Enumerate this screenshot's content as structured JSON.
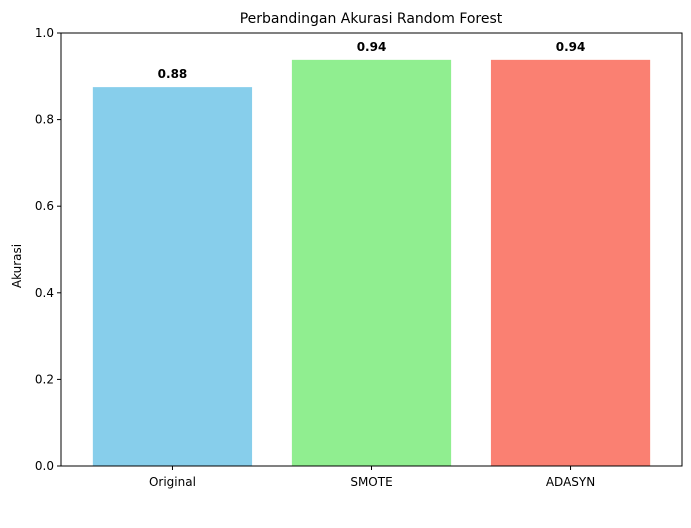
{
  "chart_data": {
    "type": "bar",
    "title": "Perbandingan Akurasi Random Forest",
    "xlabel": "",
    "ylabel": "Akurasi",
    "categories": [
      "Original",
      "SMOTE",
      "ADASYN"
    ],
    "values": [
      0.875,
      0.938,
      0.938
    ],
    "value_labels": [
      "0.88",
      "0.94",
      "0.94"
    ],
    "colors": [
      "#87ceeb",
      "#90ee90",
      "#fa8072"
    ],
    "ylim": [
      0,
      1.0
    ],
    "yticks": [
      0.0,
      0.2,
      0.4,
      0.6,
      0.8,
      1.0
    ],
    "ytick_labels": [
      "0.0",
      "0.2",
      "0.4",
      "0.6",
      "0.8",
      "1.0"
    ],
    "grid": false,
    "legend": "none"
  }
}
